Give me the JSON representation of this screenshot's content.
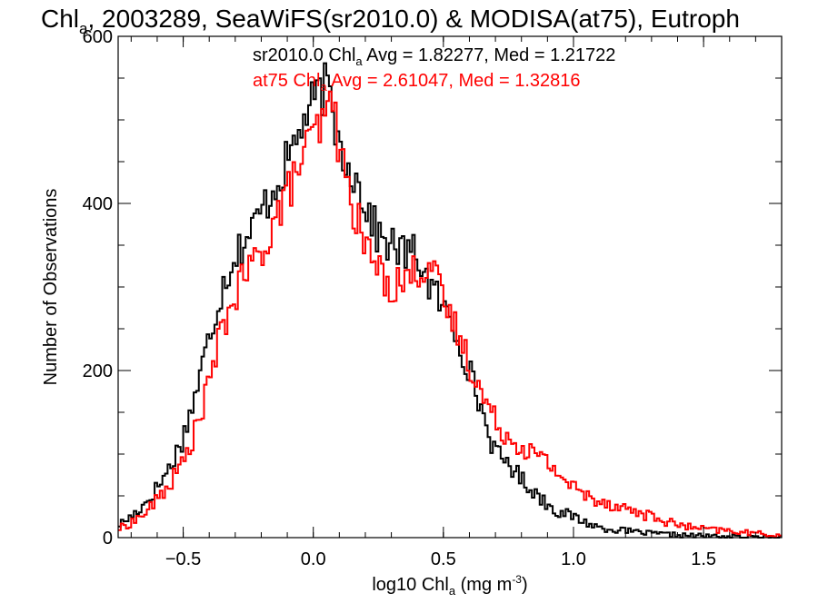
{
  "chart_data": {
    "type": "line",
    "title": "Chl",
    "title_sub": "a",
    "title_rest": ", 2003289, SeaWiFS(sr2010.0) & MODISA(at75), Eutroph",
    "xlabel_pre": "log10 Chl",
    "xlabel_sub": "a",
    "xlabel_units": " (mg m",
    "xlabel_sup": "-3",
    "xlabel_close": ")",
    "ylabel": "Number of Observations",
    "xlim": [
      -0.75,
      1.8
    ],
    "ylim": [
      0,
      600
    ],
    "xticks": [
      -0.5,
      0.0,
      0.5,
      1.0,
      1.5
    ],
    "xtick_labels": [
      "−0.5",
      "0.0",
      "0.5",
      "1.0",
      "1.5"
    ],
    "yticks": [
      0,
      200,
      400,
      600
    ],
    "ytick_labels": [
      "0",
      "200",
      "400",
      "600"
    ],
    "legend": [
      {
        "pre": "sr2010.0 Chl",
        "sub": "a",
        "post": " Avg = 1.82277, Med = 1.21722",
        "color": "#000000"
      },
      {
        "pre": "at75 Chl",
        "sub": "a",
        "post": " Avg = 2.61047, Med = 1.32816",
        "color": "#ff0000"
      }
    ],
    "series": [
      {
        "color": "#000000",
        "x": [
          -0.75,
          -0.7,
          -0.65,
          -0.6,
          -0.55,
          -0.5,
          -0.45,
          -0.4,
          -0.35,
          -0.3,
          -0.25,
          -0.2,
          -0.15,
          -0.1,
          -0.05,
          0.0,
          0.05,
          0.08,
          0.1,
          0.15,
          0.2,
          0.25,
          0.3,
          0.35,
          0.4,
          0.45,
          0.5,
          0.55,
          0.6,
          0.65,
          0.7,
          0.75,
          0.8,
          0.85,
          0.9,
          0.95,
          1.0,
          1.05,
          1.1,
          1.2,
          1.3,
          1.4,
          1.5,
          1.6,
          1.7,
          1.8
        ],
        "y": [
          15,
          25,
          40,
          60,
          85,
          120,
          175,
          240,
          300,
          340,
          360,
          390,
          420,
          450,
          490,
          520,
          540,
          500,
          470,
          440,
          400,
          360,
          350,
          340,
          340,
          300,
          275,
          245,
          200,
          150,
          100,
          90,
          70,
          55,
          40,
          30,
          25,
          18,
          12,
          8,
          5,
          3,
          2,
          1,
          0,
          0
        ]
      },
      {
        "color": "#ff0000",
        "x": [
          -0.75,
          -0.7,
          -0.65,
          -0.6,
          -0.55,
          -0.5,
          -0.45,
          -0.4,
          -0.35,
          -0.3,
          -0.25,
          -0.2,
          -0.15,
          -0.1,
          -0.05,
          0.0,
          0.05,
          0.08,
          0.1,
          0.15,
          0.2,
          0.25,
          0.3,
          0.35,
          0.4,
          0.45,
          0.5,
          0.55,
          0.6,
          0.65,
          0.7,
          0.75,
          0.8,
          0.85,
          0.9,
          0.95,
          1.0,
          1.05,
          1.1,
          1.2,
          1.3,
          1.4,
          1.5,
          1.6,
          1.7,
          1.8
        ],
        "y": [
          10,
          18,
          28,
          45,
          65,
          90,
          130,
          185,
          250,
          290,
          320,
          340,
          380,
          410,
          450,
          480,
          500,
          530,
          460,
          400,
          350,
          320,
          300,
          310,
          320,
          330,
          280,
          250,
          210,
          170,
          140,
          120,
          110,
          100,
          90,
          75,
          60,
          50,
          45,
          35,
          25,
          15,
          10,
          8,
          5,
          3
        ]
      }
    ]
  }
}
